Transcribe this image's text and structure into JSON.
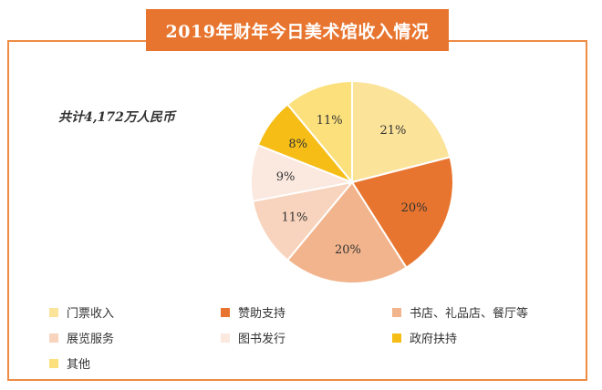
{
  "chart_data": {
    "type": "pie",
    "title": "2019年财年今日美术馆收入情况",
    "annotation": "共计4,172万人民币",
    "slices": [
      {
        "name": "门票收入",
        "value": 21,
        "label": "21%",
        "color": "#fbe39a"
      },
      {
        "name": "赞助支持",
        "value": 20,
        "label": "20%",
        "color": "#e8752f"
      },
      {
        "name": "书店、礼品店、餐厅等",
        "value": 20,
        "label": "20%",
        "color": "#f2b48c"
      },
      {
        "name": "展览服务",
        "value": 11,
        "label": "11%",
        "color": "#f8d3bd"
      },
      {
        "name": "图书发行",
        "value": 9,
        "label": "9%",
        "color": "#fbe8df"
      },
      {
        "name": "政府扶持",
        "value": 8,
        "label": "8%",
        "color": "#f5bd16"
      },
      {
        "name": "其他",
        "value": 11,
        "label": "11%",
        "color": "#fbe07c"
      }
    ],
    "legend_position": "bottom"
  }
}
